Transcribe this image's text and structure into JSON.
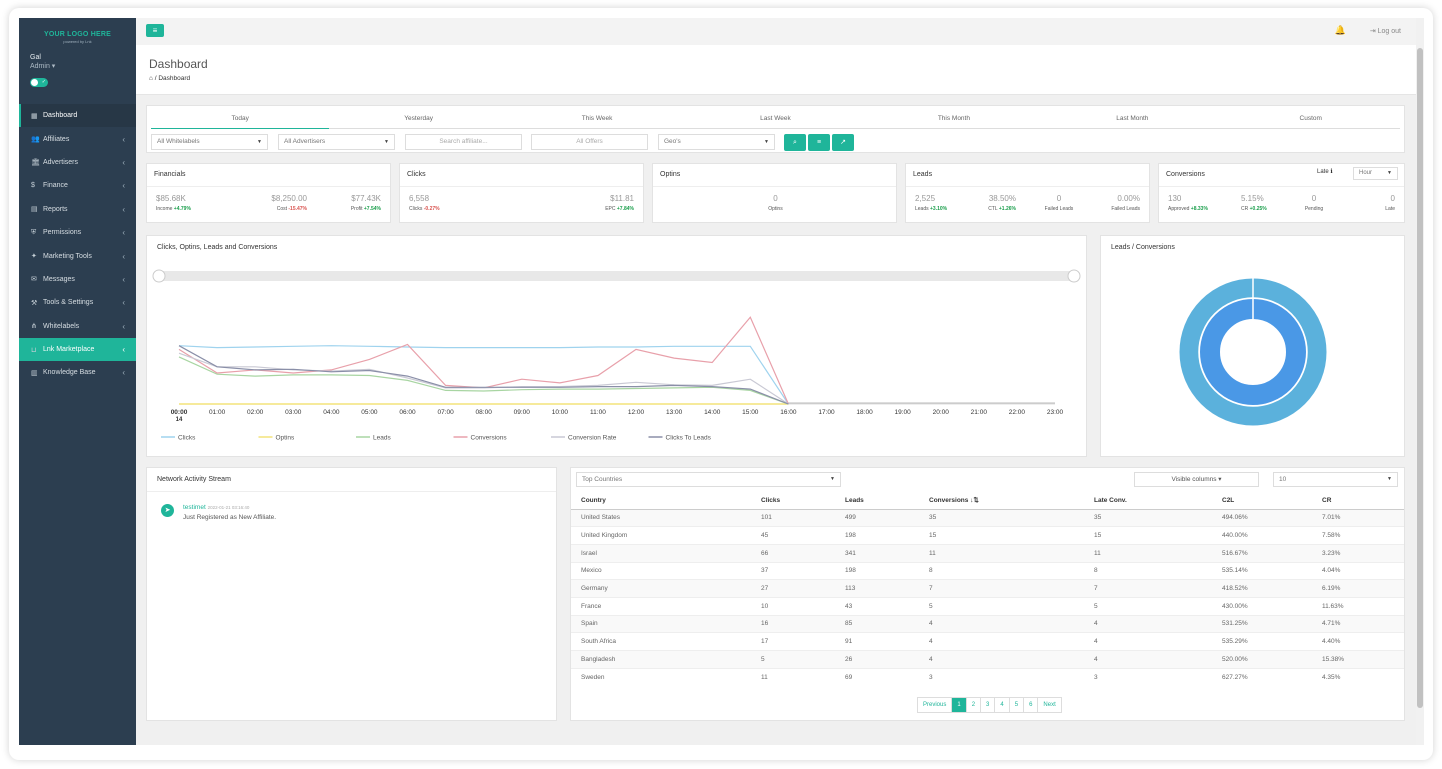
{
  "brand": {
    "logo_text": "YOUR LOGO HERE",
    "powered": "powered by Lnk"
  },
  "user": {
    "name": "Gal",
    "role": "Admin ▾",
    "toggle_label": "✓"
  },
  "sidebar": {
    "items": [
      {
        "label": "Dashboard",
        "icon": "dashboard-icon",
        "glyph": "▦"
      },
      {
        "label": "Affiliates",
        "icon": "users-icon",
        "glyph": "👥"
      },
      {
        "label": "Advertisers",
        "icon": "bank-icon",
        "glyph": "🏛"
      },
      {
        "label": "Finance",
        "icon": "dollar-icon",
        "glyph": "$"
      },
      {
        "label": "Reports",
        "icon": "file-icon",
        "glyph": "▤"
      },
      {
        "label": "Permissions",
        "icon": "shield-icon",
        "glyph": "⛨"
      },
      {
        "label": "Marketing Tools",
        "icon": "puzzle-icon",
        "glyph": "✦"
      },
      {
        "label": "Messages",
        "icon": "chat-icon",
        "glyph": "✉"
      },
      {
        "label": "Tools & Settings",
        "icon": "wrench-icon",
        "glyph": "⚒"
      },
      {
        "label": "Whitelabels",
        "icon": "sitemap-icon",
        "glyph": "⋔"
      },
      {
        "label": "Lnk Marketplace",
        "icon": "basket-icon",
        "glyph": "⊔"
      },
      {
        "label": "Knowledge Base",
        "icon": "book-icon",
        "glyph": "▥"
      }
    ]
  },
  "topbar": {
    "logout": "⇥ Log out"
  },
  "header": {
    "title": "Dashboard",
    "breadcrumb": "⌂  /  Dashboard"
  },
  "tabs": [
    "Today",
    "Yesterday",
    "This Week",
    "Last Week",
    "This Month",
    "Last Month",
    "Custom"
  ],
  "filters": {
    "whitelabels": "All Whitelabels",
    "advertisers": "All Advertisers",
    "search_placeholder": "Search affiliate...",
    "offers": "All Offers",
    "geos": "Geo's"
  },
  "stats": {
    "financials": {
      "title": "Financials",
      "income": "$85.68K",
      "income_label": "Income",
      "income_change": "+4.79%",
      "cost": "$8,250.00",
      "cost_label": "Cost",
      "cost_change": "-15.47%",
      "profit": "$77.43K",
      "profit_label": "Profit",
      "profit_change": "+7.54%"
    },
    "clicks": {
      "title": "Clicks",
      "clicks": "6,558",
      "clicks_label": "Clicks",
      "clicks_change": "-0.27%",
      "epc": "$11.81",
      "epc_label": "EPC",
      "epc_change": "+7.84%"
    },
    "optins": {
      "title": "Optins",
      "value": "0",
      "label": "Optins"
    },
    "leads": {
      "title": "Leads",
      "leads": "2,525",
      "leads_label": "Leads",
      "leads_change": "+3.10%",
      "ctl": "38.50%",
      "ctl_label": "CTL",
      "ctl_change": "+1.26%",
      "failed": "0",
      "failed_label": "Failed Leads",
      "failed_pct": "0.00%",
      "failed_pct_label": "Failed Leads"
    },
    "conversions": {
      "title": "Conversions",
      "late_label": "Late ℹ",
      "hour_select": "Hour",
      "approved": "130",
      "approved_label": "Approved",
      "approved_change": "+8.33%",
      "cr": "5.15%",
      "cr_label": "CR",
      "cr_change": "+0.25%",
      "pending": "0",
      "pending_label": "Pending",
      "late": "0",
      "late_value_label": "Late"
    }
  },
  "line_chart": {
    "title": "Clicks, Optins, Leads and Conversions"
  },
  "chart_data": [
    {
      "type": "line",
      "title": "Clicks, Optins, Leads and Conversions",
      "x": [
        "00:00",
        "01:00",
        "02:00",
        "03:00",
        "04:00",
        "05:00",
        "06:00",
        "07:00",
        "08:00",
        "09:00",
        "10:00",
        "11:00",
        "12:00",
        "13:00",
        "14:00",
        "15:00",
        "16:00",
        "17:00",
        "18:00",
        "19:00",
        "20:00",
        "21:00",
        "22:00",
        "23:00"
      ],
      "x_sublabel": "14",
      "legend_position": "bottom",
      "series": [
        {
          "name": "Clicks",
          "color": "#9fd3ee",
          "values": [
            94,
            91,
            92,
            93,
            94,
            93,
            92,
            91,
            91,
            91,
            91,
            92,
            92,
            93,
            93,
            93,
            0,
            null,
            null,
            null,
            null,
            null,
            null,
            null
          ]
        },
        {
          "name": "Optins",
          "color": "#f3e37a",
          "values": [
            0,
            0,
            0,
            0,
            0,
            0,
            0,
            0,
            0,
            0,
            0,
            0,
            0,
            0,
            0,
            0,
            0,
            null,
            null,
            null,
            null,
            null,
            null,
            null
          ]
        },
        {
          "name": "Leads",
          "color": "#a8d5a2",
          "values": [
            76,
            48,
            45,
            47,
            47,
            46,
            38,
            22,
            21,
            23,
            24,
            24,
            25,
            26,
            27,
            22,
            0,
            null,
            null,
            null,
            null,
            null,
            null,
            null
          ]
        },
        {
          "name": "Conversions",
          "color": "#e8a0aa",
          "values": [
            88,
            50,
            55,
            50,
            55,
            72,
            96,
            30,
            26,
            40,
            34,
            46,
            88,
            74,
            67,
            140,
            0,
            null,
            null,
            null,
            null,
            null,
            null,
            null
          ]
        },
        {
          "name": "Conversion Rate",
          "color": "#c9c9d4",
          "values": [
            82,
            60,
            60,
            55,
            53,
            56,
            42,
            26,
            26,
            28,
            28,
            30,
            35,
            31,
            30,
            40,
            0,
            null,
            null,
            null,
            null,
            null,
            null,
            null
          ]
        },
        {
          "name": "Clicks To Leads",
          "color": "#8a8fa8",
          "values": [
            94,
            60,
            55,
            56,
            52,
            54,
            45,
            27,
            27,
            27,
            27,
            28,
            28,
            30,
            28,
            24,
            0,
            null,
            null,
            null,
            null,
            null,
            null,
            null
          ]
        }
      ]
    },
    {
      "type": "pie",
      "title": "Leads / Conversions",
      "series": [
        {
          "name": "Leads",
          "values": [
            1
          ],
          "color": "#5bb1dc"
        },
        {
          "name": "Conversions",
          "values": [
            1
          ],
          "color": "#4a98e6"
        }
      ]
    }
  ],
  "donut": {
    "title": "Leads / Conversions"
  },
  "activity": {
    "title": "Network Activity Stream",
    "entries": [
      {
        "user": "testimet",
        "time": "2022-01-21 03:16:40",
        "text": "Just Registered as New Affiliate."
      }
    ]
  },
  "countries": {
    "select": "Top Countries",
    "visible_columns": "Visible columns ▾",
    "page_size": "10",
    "columns": [
      "Country",
      "Clicks",
      "Leads",
      "Conversions ↓⇅",
      "Late Conv.",
      "C2L",
      "CR"
    ],
    "rows": [
      [
        "United States",
        "101",
        "499",
        "35",
        "35",
        "494.06%",
        "7.01%"
      ],
      [
        "United Kingdom",
        "45",
        "198",
        "15",
        "15",
        "440.00%",
        "7.58%"
      ],
      [
        "Israel",
        "66",
        "341",
        "11",
        "11",
        "516.67%",
        "3.23%"
      ],
      [
        "Mexico",
        "37",
        "198",
        "8",
        "8",
        "535.14%",
        "4.04%"
      ],
      [
        "Germany",
        "27",
        "113",
        "7",
        "7",
        "418.52%",
        "6.19%"
      ],
      [
        "France",
        "10",
        "43",
        "5",
        "5",
        "430.00%",
        "11.63%"
      ],
      [
        "Spain",
        "16",
        "85",
        "4",
        "4",
        "531.25%",
        "4.71%"
      ],
      [
        "South Africa",
        "17",
        "91",
        "4",
        "4",
        "535.29%",
        "4.40%"
      ],
      [
        "Bangladesh",
        "5",
        "26",
        "4",
        "4",
        "520.00%",
        "15.38%"
      ],
      [
        "Sweden",
        "11",
        "69",
        "3",
        "3",
        "627.27%",
        "4.35%"
      ]
    ],
    "pagination": [
      "Previous",
      "1",
      "2",
      "3",
      "4",
      "5",
      "6",
      "Next"
    ]
  }
}
